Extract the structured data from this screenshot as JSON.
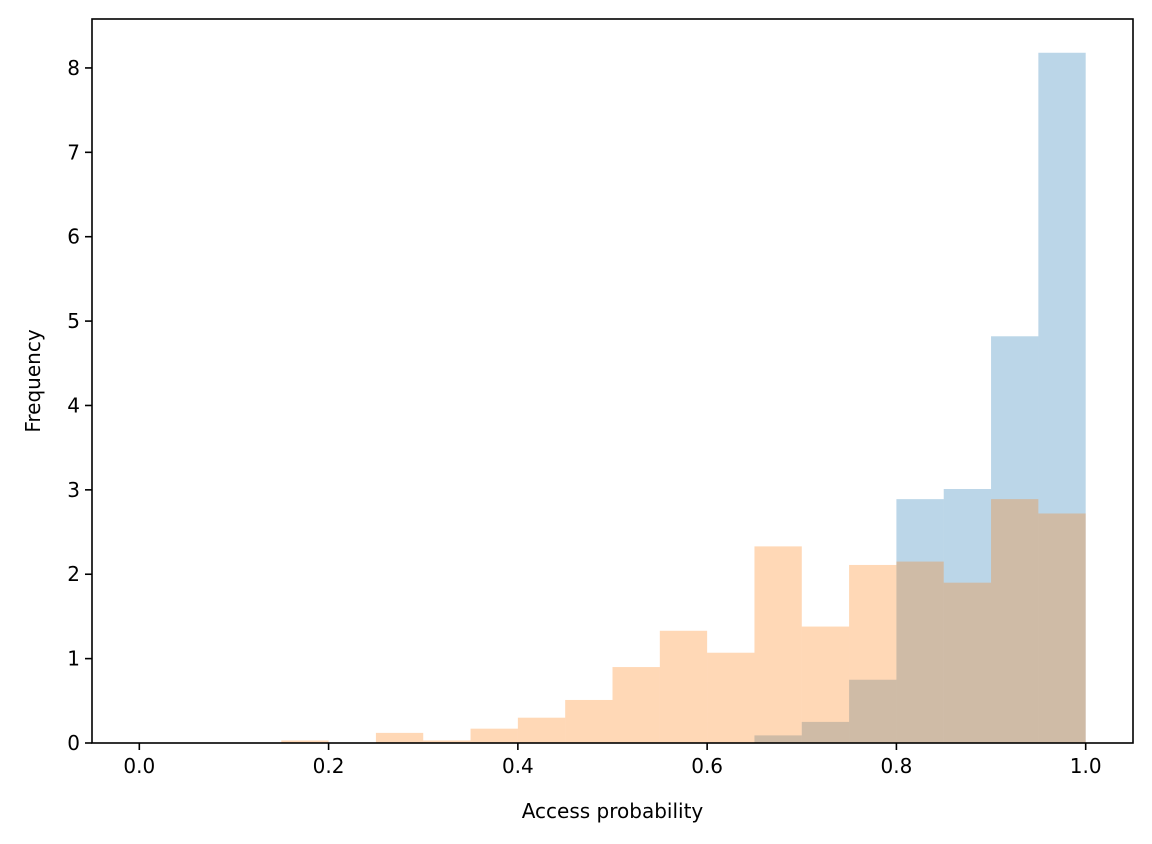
{
  "chart_data": {
    "type": "bar",
    "subtype": "overlaid-histogram",
    "title": "",
    "xlabel": "Access probability",
    "ylabel": "Frequency",
    "xlim": [
      -0.05,
      1.05
    ],
    "ylim": [
      0,
      8.58
    ],
    "x_ticks": [
      0.0,
      0.2,
      0.4,
      0.6,
      0.8,
      1.0
    ],
    "x_tick_labels": [
      "0.0",
      "0.2",
      "0.4",
      "0.6",
      "0.8",
      "1.0"
    ],
    "y_ticks": [
      0,
      1,
      2,
      3,
      4,
      5,
      6,
      7,
      8
    ],
    "y_tick_labels": [
      "0",
      "1",
      "2",
      "3",
      "4",
      "5",
      "6",
      "7",
      "8"
    ],
    "grid": false,
    "legend": "none",
    "bin_edges": [
      0.0,
      0.05,
      0.1,
      0.15,
      0.2,
      0.25,
      0.3,
      0.35,
      0.4,
      0.45,
      0.5,
      0.55,
      0.6,
      0.65,
      0.7,
      0.75,
      0.8,
      0.85,
      0.9,
      0.95,
      1.0
    ],
    "series": [
      {
        "color": "#1f77b4",
        "alpha": 0.3,
        "values": [
          0,
          0,
          0,
          0,
          0,
          0,
          0,
          0,
          0,
          0,
          0,
          0,
          0,
          0.09,
          0.25,
          0.75,
          2.89,
          3.01,
          4.82,
          8.18
        ]
      },
      {
        "color": "#ff7f0e",
        "alpha": 0.3,
        "values": [
          0,
          0,
          0,
          0.03,
          0,
          0.12,
          0.03,
          0.17,
          0.3,
          0.51,
          0.9,
          1.33,
          1.07,
          2.33,
          1.38,
          2.11,
          2.15,
          1.9,
          2.89,
          2.72
        ]
      }
    ]
  }
}
